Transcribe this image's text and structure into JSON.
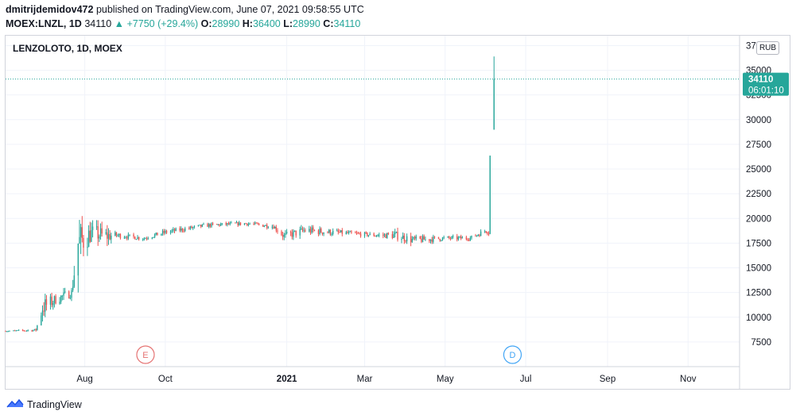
{
  "header": {
    "author": "dmitrijdemidov472",
    "published_text": "published on TradingView.com, June 07, 2021 09:58:55 UTC",
    "symbol": "MOEX:LNZL, 1D",
    "last": "34110",
    "change": "▲ +7750 (+29.4%)",
    "o_label": "O:",
    "o_value": "28990",
    "h_label": "H:",
    "h_value": "36400",
    "l_label": "L:",
    "l_value": "28990",
    "c_label": "C:",
    "c_value": "34110"
  },
  "chart_title": "LENZOLOTO, 1D, MOEX",
  "currency": "RUB",
  "price_tag": {
    "price": "34110",
    "countdown": "06:01:10"
  },
  "event_markers": [
    {
      "letter": "E",
      "color": "#e57373",
      "date": "2020-09-16"
    },
    {
      "letter": "D",
      "color": "#42a5f5",
      "date": "2021-06-21"
    }
  ],
  "footer": {
    "brand": "TradingView"
  },
  "colors": {
    "up": "#26a69a",
    "down": "#ef5350",
    "grid": "#f0f3fa",
    "axis_text": "#131722"
  },
  "chart_data": {
    "type": "candlestick",
    "title": "LENZOLOTO, 1D, MOEX",
    "xlabel": "",
    "ylabel": "",
    "ylim": [
      5000,
      38500
    ],
    "x_range": [
      "2020-06-02",
      "2021-12-10"
    ],
    "yticks": [
      7500,
      10000,
      12500,
      15000,
      17500,
      20000,
      22500,
      25000,
      27500,
      30000,
      32500,
      35000,
      37500
    ],
    "xticks": [
      {
        "date": "2020-08-01",
        "label": "Aug"
      },
      {
        "date": "2020-10-01",
        "label": "Oct"
      },
      {
        "date": "2021-01-01",
        "label": "2021"
      },
      {
        "date": "2021-03-01",
        "label": "Mar"
      },
      {
        "date": "2021-05-01",
        "label": "May"
      },
      {
        "date": "2021-07-01",
        "label": "Jul"
      },
      {
        "date": "2021-09-01",
        "label": "Sep"
      },
      {
        "date": "2021-11-01",
        "label": "Nov"
      }
    ],
    "last_price": 34110,
    "grid": true,
    "segments": [
      [
        "2020-06-02",
        8600,
        8500,
        8700
      ],
      [
        "2020-06-25",
        8700,
        8500,
        9000
      ],
      [
        "2020-06-30",
        11000,
        9500,
        13500
      ],
      [
        "2020-07-10",
        11800,
        10800,
        12800
      ],
      [
        "2020-07-22",
        12500,
        11600,
        13500
      ],
      [
        "2020-07-27",
        17500,
        12500,
        20500
      ],
      [
        "2020-08-07",
        18600,
        17000,
        20000
      ],
      [
        "2020-08-15",
        18200,
        16000,
        19800
      ],
      [
        "2020-08-25",
        18300,
        17800,
        18900
      ],
      [
        "2020-09-15",
        18000,
        17700,
        18500
      ],
      [
        "2020-10-01",
        18600,
        18200,
        19200
      ],
      [
        "2020-11-01",
        19300,
        18900,
        19700
      ],
      [
        "2020-12-01",
        19500,
        19100,
        19800
      ],
      [
        "2020-12-22",
        19200,
        18700,
        19600
      ],
      [
        "2020-12-30",
        18200,
        17600,
        19200
      ],
      [
        "2021-01-15",
        18800,
        18000,
        19700
      ],
      [
        "2021-02-15",
        18500,
        18000,
        19000
      ],
      [
        "2021-03-10",
        18300,
        17900,
        18700
      ],
      [
        "2021-03-24",
        18300,
        17800,
        19500
      ],
      [
        "2021-04-07",
        17800,
        16800,
        18400
      ],
      [
        "2021-05-01",
        18000,
        17600,
        18500
      ],
      [
        "2021-05-20",
        18000,
        17700,
        18600
      ],
      [
        "2021-06-01",
        18800,
        18200,
        19300
      ],
      [
        "2021-06-03",
        18600,
        18200,
        19200
      ],
      [
        "2021-06-04",
        26360,
        18400,
        26360
      ]
    ],
    "candles": [
      {
        "date": "2021-06-07",
        "open": 28990,
        "high": 36400,
        "low": 28990,
        "close": 34110
      }
    ]
  }
}
